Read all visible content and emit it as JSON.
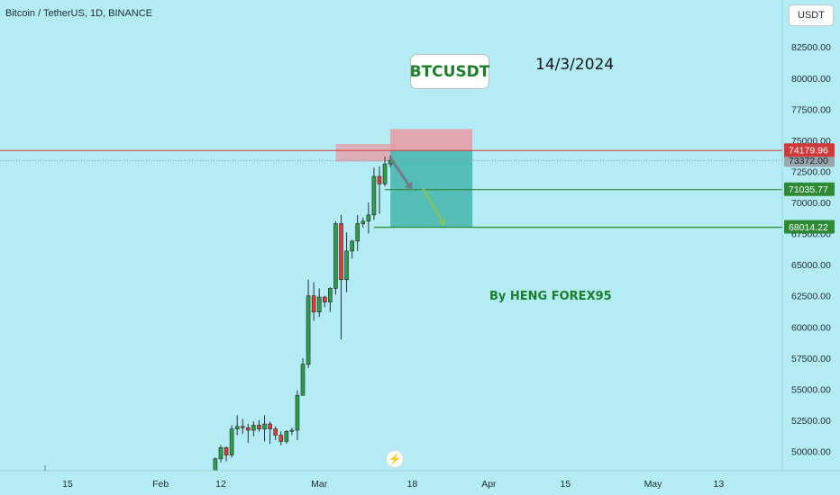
{
  "header": {
    "symbol_line": "Bitcoin / TetherUS, 1D, BINANCE"
  },
  "currency_button": "USDT",
  "annotations": {
    "title_box": "BTCUSDT",
    "date": "14/3/2024",
    "author": "By HENG FOREX95"
  },
  "flash_icon": "lightning-icon",
  "colors": {
    "background": "#b3ecf5",
    "bull": "#2e9e4a",
    "bear": "#e23b3b",
    "stop_zone": "#e99aa3",
    "target_zone": "#4ab8b0",
    "resistance_line": "#d13a3a",
    "target_line": "#2f8a36",
    "arrow_1": "#6f7f88",
    "arrow_2": "#7cc46a"
  },
  "chart_data": {
    "type": "candlestick",
    "title": "",
    "ylim": [
      48500,
      84000
    ],
    "y_ticks": [
      "82500.00",
      "80000.00",
      "77500.00",
      "75000.00",
      "72500.00",
      "70000.00",
      "67500.00",
      "65000.00",
      "62500.00",
      "60000.00",
      "57500.00",
      "55000.00",
      "52500.00",
      "50000.00"
    ],
    "x_ticks": [
      {
        "label": "15",
        "date": "2024-01-15"
      },
      {
        "label": "Feb",
        "date": "2024-02-01"
      },
      {
        "label": "12",
        "date": "2024-02-12"
      },
      {
        "label": "Mar",
        "date": "2024-03-01"
      },
      {
        "label": "18",
        "date": "2024-03-18"
      },
      {
        "label": "Apr",
        "date": "2024-04-01"
      },
      {
        "label": "15",
        "date": "2024-04-15"
      },
      {
        "label": "May",
        "date": "2024-05-01"
      },
      {
        "label": "13",
        "date": "2024-05-13"
      }
    ],
    "candles": [
      {
        "date": "2024-02-11",
        "o": 48300,
        "h": 49500,
        "l": 47800,
        "c": 49400
      },
      {
        "date": "2024-02-12",
        "o": 49400,
        "h": 50500,
        "l": 49100,
        "c": 50300
      },
      {
        "date": "2024-02-13",
        "o": 50300,
        "h": 50400,
        "l": 49200,
        "c": 49700
      },
      {
        "date": "2024-02-14",
        "o": 49700,
        "h": 52100,
        "l": 49500,
        "c": 51800
      },
      {
        "date": "2024-02-15",
        "o": 51800,
        "h": 52900,
        "l": 51300,
        "c": 52000
      },
      {
        "date": "2024-02-16",
        "o": 52000,
        "h": 52600,
        "l": 51400,
        "c": 51900
      },
      {
        "date": "2024-02-17",
        "o": 51900,
        "h": 52200,
        "l": 50700,
        "c": 51700
      },
      {
        "date": "2024-02-18",
        "o": 51700,
        "h": 52400,
        "l": 51200,
        "c": 52100
      },
      {
        "date": "2024-02-19",
        "o": 52100,
        "h": 52500,
        "l": 51600,
        "c": 51800
      },
      {
        "date": "2024-02-20",
        "o": 51800,
        "h": 52900,
        "l": 50800,
        "c": 52200
      },
      {
        "date": "2024-02-21",
        "o": 52200,
        "h": 52400,
        "l": 50600,
        "c": 51800
      },
      {
        "date": "2024-02-22",
        "o": 51800,
        "h": 52000,
        "l": 50900,
        "c": 51300
      },
      {
        "date": "2024-02-23",
        "o": 51300,
        "h": 51600,
        "l": 50500,
        "c": 50800
      },
      {
        "date": "2024-02-24",
        "o": 50800,
        "h": 51700,
        "l": 50600,
        "c": 51600
      },
      {
        "date": "2024-02-25",
        "o": 51600,
        "h": 51900,
        "l": 51300,
        "c": 51700
      },
      {
        "date": "2024-02-26",
        "o": 51700,
        "h": 54900,
        "l": 50900,
        "c": 54500
      },
      {
        "date": "2024-02-27",
        "o": 54500,
        "h": 57500,
        "l": 54500,
        "c": 57000
      },
      {
        "date": "2024-02-28",
        "o": 57000,
        "h": 63800,
        "l": 56700,
        "c": 62500
      },
      {
        "date": "2024-02-29",
        "o": 62500,
        "h": 63600,
        "l": 60500,
        "c": 61200
      },
      {
        "date": "2024-03-01",
        "o": 61200,
        "h": 63100,
        "l": 60800,
        "c": 62400
      },
      {
        "date": "2024-03-02",
        "o": 62400,
        "h": 62500,
        "l": 61600,
        "c": 62000
      },
      {
        "date": "2024-03-03",
        "o": 62000,
        "h": 63200,
        "l": 61200,
        "c": 63100
      },
      {
        "date": "2024-03-04",
        "o": 63100,
        "h": 68500,
        "l": 62600,
        "c": 68300
      },
      {
        "date": "2024-03-05",
        "o": 68300,
        "h": 69000,
        "l": 59000,
        "c": 63800
      },
      {
        "date": "2024-03-06",
        "o": 63800,
        "h": 67600,
        "l": 62800,
        "c": 66100
      },
      {
        "date": "2024-03-07",
        "o": 66100,
        "h": 67000,
        "l": 65500,
        "c": 66900
      },
      {
        "date": "2024-03-08",
        "o": 66900,
        "h": 69000,
        "l": 66100,
        "c": 68300
      },
      {
        "date": "2024-03-09",
        "o": 68300,
        "h": 68800,
        "l": 68000,
        "c": 68500
      },
      {
        "date": "2024-03-10",
        "o": 68500,
        "h": 70000,
        "l": 67500,
        "c": 69000
      },
      {
        "date": "2024-03-11",
        "o": 69000,
        "h": 72800,
        "l": 68600,
        "c": 72100
      },
      {
        "date": "2024-03-12",
        "o": 72100,
        "h": 72900,
        "l": 69100,
        "c": 71500
      },
      {
        "date": "2024-03-13",
        "o": 71500,
        "h": 73700,
        "l": 71300,
        "c": 73100
      },
      {
        "date": "2024-03-14",
        "o": 73100,
        "h": 73800,
        "l": 72800,
        "c": 73400
      }
    ],
    "horizontal_lines": [
      {
        "name": "resistance",
        "value": 74179.96,
        "label": "74179.96"
      },
      {
        "name": "target-1",
        "value": 71035.77,
        "label": "71035.77"
      },
      {
        "name": "target-2",
        "value": 68014.22,
        "label": "68014.22"
      }
    ],
    "current_price": {
      "value": 73372.0,
      "label": "73372.00"
    },
    "position": {
      "type": "short",
      "start_date": "2024-03-14",
      "end_date": "2024-03-29",
      "stop": 75900,
      "entry": 74179.96,
      "target": 68014.22
    },
    "resistance_zone": {
      "start_date": "2024-03-04",
      "end_date": "2024-03-15",
      "low": 73300,
      "high": 74700
    },
    "arrows": [
      {
        "from_date": "2024-03-14",
        "from_value": 73600,
        "to_date": "2024-03-18",
        "to_value": 71000
      },
      {
        "from_date": "2024-03-20",
        "from_value": 71100,
        "to_date": "2024-03-24",
        "to_value": 68100
      }
    ]
  }
}
